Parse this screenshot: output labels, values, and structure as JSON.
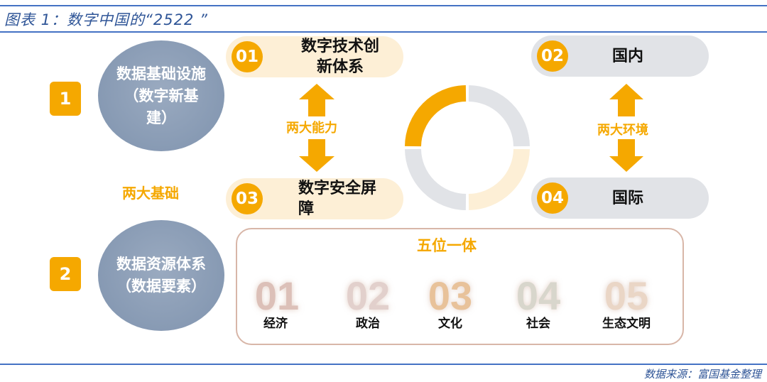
{
  "title": "图表 1：数字中国的“2522 ”",
  "source": "数据来源：富国基金整理",
  "foundations": {
    "label": "两大基础",
    "items": [
      {
        "badge": "1",
        "text": "数据基础设施（数字新基建）"
      },
      {
        "badge": "2",
        "text": "数据资源体系（数据要素）"
      }
    ]
  },
  "capabilities": {
    "label": "两大能力",
    "items": [
      {
        "num": "01",
        "text": "数字技术创新体系"
      },
      {
        "num": "03",
        "text": "数字安全屏障"
      }
    ]
  },
  "environments": {
    "label": "两大环境",
    "items": [
      {
        "num": "02",
        "text": "国内"
      },
      {
        "num": "04",
        "text": "国际"
      }
    ]
  },
  "five_in_one": {
    "label": "五位一体",
    "items": [
      {
        "num": "01",
        "text": "经济",
        "color": "#dcc0b8"
      },
      {
        "num": "02",
        "text": "政治",
        "color": "#e2d0cc"
      },
      {
        "num": "03",
        "text": "文化",
        "color": "#e8c29a"
      },
      {
        "num": "04",
        "text": "社会",
        "color": "#d8d6cc"
      },
      {
        "num": "05",
        "text": "生态文明",
        "color": "#ead6c6"
      }
    ]
  },
  "colors": {
    "accent": "#f5a800",
    "blue": "#2f5597",
    "gray": "#e1e3e7",
    "light_orange": "#fdefd6",
    "circle": "#8497b0"
  }
}
